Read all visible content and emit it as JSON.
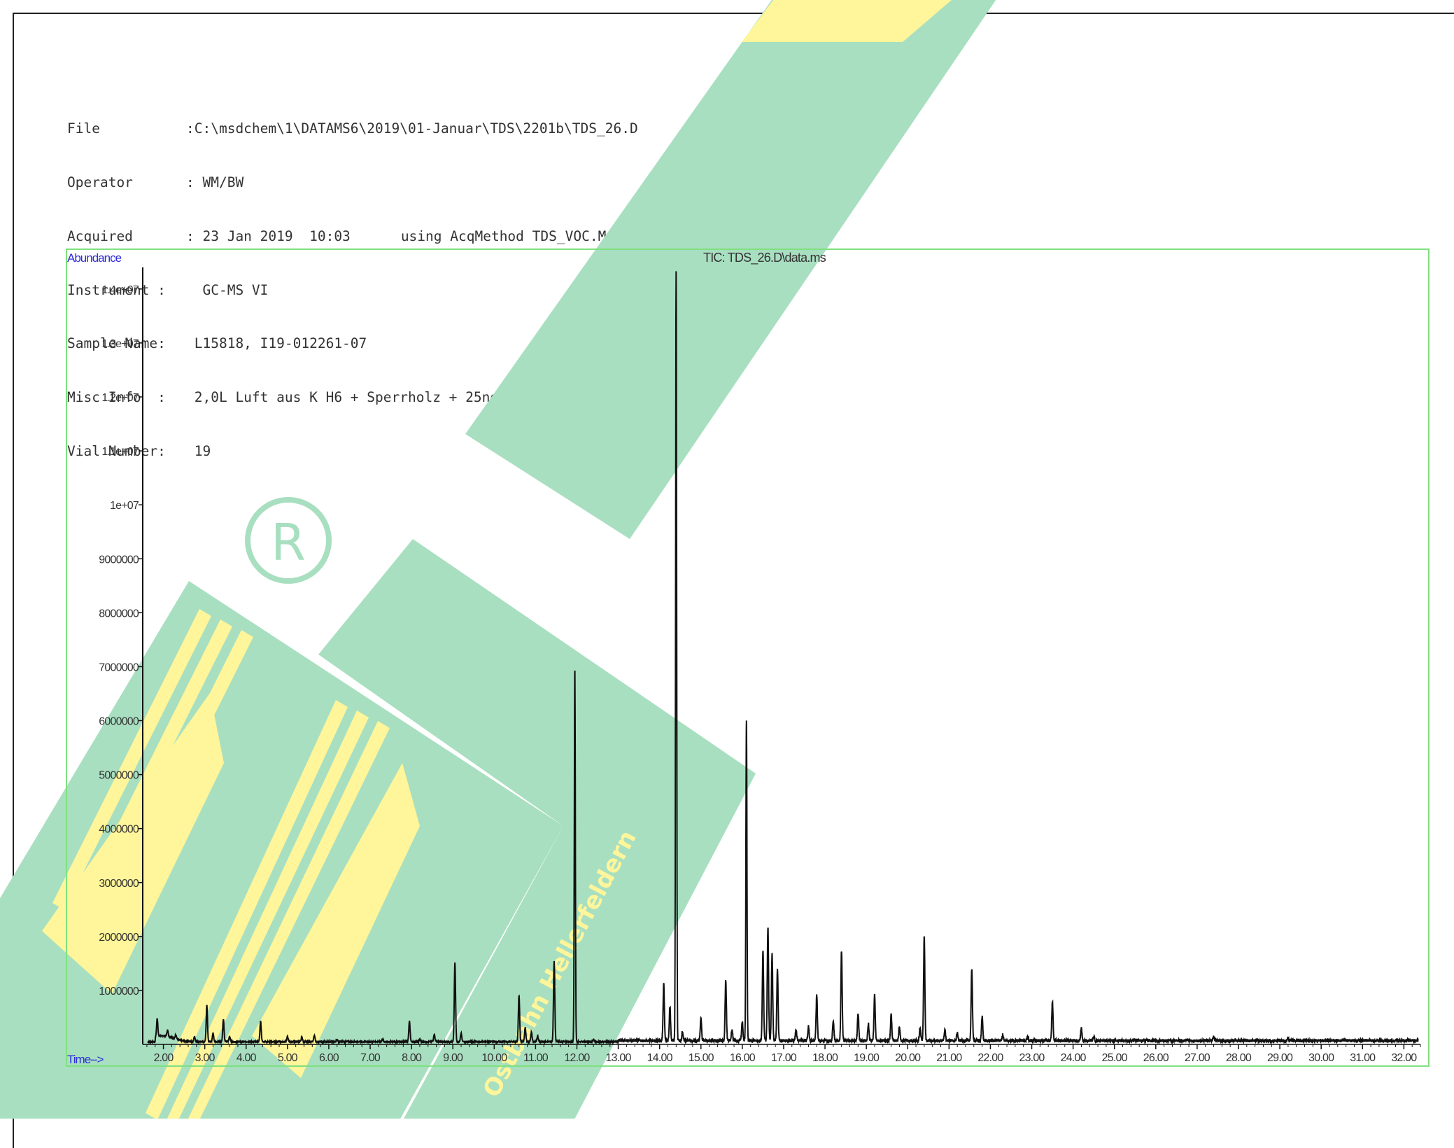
{
  "header": {
    "file_label": "File",
    "file_value": ":C:\\msdchem\\1\\DATAMS6\\2019\\01-Januar\\TDS\\2201b\\TDS_26.D",
    "operator_label": "Operator",
    "operator_value": ": WM/BW",
    "acquired_label": "Acquired",
    "acquired_value": ": 23 Jan 2019  10:03",
    "acquired_extra": "using AcqMethod TDS_VOC.M",
    "instrument_label": "Instrument :",
    "instrument_value": "  GC-MS VI",
    "sample_label": "Sample Name:",
    "sample_value": " L15818, I19-012261-07",
    "misc_label": "Misc Info  :",
    "misc_value": " 2,0L Luft aus K H6 + Sperrholz + 25ng ISTD",
    "vial_label": "Vial Number:",
    "vial_value": " 19"
  },
  "watermark": {
    "vertical_text": "Ostbahn Hellerfeldern"
  },
  "colors": {
    "frame_green": "#7fe07f",
    "trace": "#111111",
    "label_blue": "#2d2dd8",
    "watermark_green": "#a8dfc0",
    "watermark_yellow": "#fff59a"
  },
  "chart_data": {
    "type": "line",
    "title": "TIC: TDS_26.D\\data.ms",
    "ylabel": "Abundance",
    "xlabel": "Time-->",
    "xlim": [
      1.5,
      32.4
    ],
    "ylim": [
      0,
      14400000
    ],
    "x_ticks": [
      2,
      3,
      4,
      5,
      6,
      7,
      8,
      9,
      10,
      11,
      12,
      13,
      14,
      15,
      16,
      17,
      18,
      19,
      20,
      21,
      22,
      23,
      24,
      25,
      26,
      27,
      28,
      29,
      30,
      31,
      32
    ],
    "x_tick_labels": [
      "2.00",
      "3.00",
      "4.00",
      "5.00",
      "6.00",
      "7.00",
      "8.00",
      "9.00",
      "10.00",
      "11.00",
      "12.00",
      "13.00",
      "14.00",
      "15.00",
      "16.00",
      "17.00",
      "18.00",
      "19.00",
      "20.00",
      "21.00",
      "22.00",
      "23.00",
      "24.00",
      "25.00",
      "26.00",
      "27.00",
      "28.00",
      "29.00",
      "30.00",
      "31.00",
      "32.00"
    ],
    "y_ticks": [
      1000000,
      2000000,
      3000000,
      4000000,
      5000000,
      6000000,
      7000000,
      8000000,
      9000000,
      10000000,
      11000000,
      12000000,
      13000000,
      14000000
    ],
    "y_tick_labels": [
      "1000000",
      "2000000",
      "3000000",
      "4000000",
      "5000000",
      "6000000",
      "7000000",
      "8000000",
      "9000000",
      "1e+07",
      "1.1e+07",
      "1.2e+07",
      "1.3e+07",
      "1.4e+07"
    ],
    "baseline": 40000,
    "peaks": [
      {
        "x": 1.85,
        "y": 380000
      },
      {
        "x": 2.1,
        "y": 150000
      },
      {
        "x": 2.3,
        "y": 120000
      },
      {
        "x": 2.75,
        "y": 130000
      },
      {
        "x": 3.05,
        "y": 720000
      },
      {
        "x": 3.2,
        "y": 200000
      },
      {
        "x": 3.45,
        "y": 460000
      },
      {
        "x": 3.6,
        "y": 140000
      },
      {
        "x": 4.35,
        "y": 420000
      },
      {
        "x": 5.0,
        "y": 130000
      },
      {
        "x": 5.35,
        "y": 120000
      },
      {
        "x": 5.65,
        "y": 160000
      },
      {
        "x": 6.2,
        "y": 80000
      },
      {
        "x": 7.3,
        "y": 90000
      },
      {
        "x": 7.95,
        "y": 420000
      },
      {
        "x": 8.2,
        "y": 90000
      },
      {
        "x": 8.55,
        "y": 180000
      },
      {
        "x": 9.05,
        "y": 1510000
      },
      {
        "x": 9.2,
        "y": 200000
      },
      {
        "x": 10.6,
        "y": 900000
      },
      {
        "x": 10.75,
        "y": 300000
      },
      {
        "x": 10.9,
        "y": 220000
      },
      {
        "x": 11.05,
        "y": 140000
      },
      {
        "x": 11.45,
        "y": 1550000
      },
      {
        "x": 11.95,
        "y": 7000000
      },
      {
        "x": 12.4,
        "y": 80000
      },
      {
        "x": 14.1,
        "y": 1100000
      },
      {
        "x": 14.25,
        "y": 680000
      },
      {
        "x": 14.4,
        "y": 14300000
      },
      {
        "x": 14.55,
        "y": 200000
      },
      {
        "x": 15.0,
        "y": 450000
      },
      {
        "x": 15.6,
        "y": 1150000
      },
      {
        "x": 15.75,
        "y": 250000
      },
      {
        "x": 16.0,
        "y": 400000
      },
      {
        "x": 16.1,
        "y": 6000000
      },
      {
        "x": 16.5,
        "y": 1700000
      },
      {
        "x": 16.62,
        "y": 2150000
      },
      {
        "x": 16.72,
        "y": 1650000
      },
      {
        "x": 16.85,
        "y": 1350000
      },
      {
        "x": 17.3,
        "y": 250000
      },
      {
        "x": 17.6,
        "y": 300000
      },
      {
        "x": 17.8,
        "y": 880000
      },
      {
        "x": 18.2,
        "y": 420000
      },
      {
        "x": 18.4,
        "y": 1700000
      },
      {
        "x": 18.8,
        "y": 560000
      },
      {
        "x": 19.05,
        "y": 350000
      },
      {
        "x": 19.2,
        "y": 900000
      },
      {
        "x": 19.6,
        "y": 520000
      },
      {
        "x": 19.8,
        "y": 300000
      },
      {
        "x": 20.3,
        "y": 280000
      },
      {
        "x": 20.4,
        "y": 1960000
      },
      {
        "x": 20.9,
        "y": 230000
      },
      {
        "x": 21.2,
        "y": 200000
      },
      {
        "x": 21.55,
        "y": 1380000
      },
      {
        "x": 21.8,
        "y": 480000
      },
      {
        "x": 22.3,
        "y": 150000
      },
      {
        "x": 22.9,
        "y": 130000
      },
      {
        "x": 23.5,
        "y": 770000
      },
      {
        "x": 24.2,
        "y": 280000
      },
      {
        "x": 24.5,
        "y": 120000
      },
      {
        "x": 27.4,
        "y": 110000
      },
      {
        "x": 29.2,
        "y": 90000
      }
    ]
  }
}
